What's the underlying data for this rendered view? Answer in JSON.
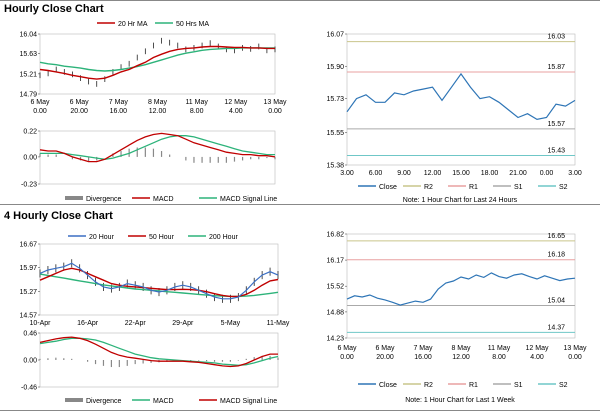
{
  "section1": {
    "title": "Hourly Close Chart"
  },
  "section2": {
    "title": "4 Hourly Close Chart"
  },
  "colors": {
    "close": "#2e75b6",
    "ma_red": "#c00000",
    "ma_green": "#2db37a",
    "r2": "#c9c58b",
    "r1": "#e8a0a0",
    "s1": "#aaaaaa",
    "s2": "#6fc7c7",
    "divergence": "#888888",
    "macd_red": "#c00000",
    "signal_green": "#2db37a",
    "ma_blue": "#3b6fc4"
  },
  "chart_data": [
    {
      "id": "hourly_price",
      "type": "line",
      "legend": [
        "20 Hr MA",
        "50 Hrs MA"
      ],
      "yticks": [
        "16.04",
        "15.63",
        "15.21",
        "14.79"
      ],
      "ylim": [
        14.79,
        16.04
      ],
      "xticks": [
        [
          "6 May",
          "0.00"
        ],
        [
          "6 May",
          "20.00"
        ],
        [
          "7 May",
          "16.00"
        ],
        [
          "8 May",
          "12.00"
        ],
        [
          "11 May",
          "8.00"
        ],
        [
          "12 May",
          "4.00"
        ],
        [
          "13 May",
          "0.00"
        ]
      ],
      "series": [
        {
          "values": [
            15.18,
            15.22,
            15.3,
            15.25,
            15.2,
            15.12,
            15.05,
            15.0,
            15.1,
            15.25,
            15.35,
            15.42,
            15.55,
            15.68,
            15.8,
            15.9,
            15.86,
            15.8,
            15.72,
            15.75,
            15.8,
            15.85,
            15.78,
            15.72,
            15.7,
            15.75,
            15.73,
            15.78,
            15.7,
            15.72
          ]
        },
        {
          "values": [
            15.3,
            15.28,
            15.25,
            15.22,
            15.18,
            15.15,
            15.12,
            15.1,
            15.12,
            15.18,
            15.25,
            15.3,
            15.38,
            15.45,
            15.55,
            15.62,
            15.68,
            15.72,
            15.74,
            15.75,
            15.77,
            15.78,
            15.78,
            15.77,
            15.76,
            15.76,
            15.75,
            15.75,
            15.74,
            15.74
          ]
        },
        {
          "values": [
            15.45,
            15.42,
            15.4,
            15.37,
            15.35,
            15.33,
            15.3,
            15.28,
            15.27,
            15.28,
            15.3,
            15.33,
            15.36,
            15.4,
            15.45,
            15.5,
            15.55,
            15.6,
            15.64,
            15.67,
            15.7,
            15.72,
            15.73,
            15.74,
            15.74,
            15.75,
            15.75,
            15.75,
            15.75,
            15.75
          ]
        }
      ]
    },
    {
      "id": "hourly_macd",
      "type": "line",
      "legend": [
        "Divergence",
        "MACD",
        "MACD Signal Line"
      ],
      "yticks": [
        "0.22",
        "0.00",
        "-0.23"
      ],
      "ylim": [
        -0.23,
        0.22
      ],
      "series": [
        {
          "values": [
            0.06,
            0.05,
            0.05,
            0.03,
            0.0,
            -0.02,
            -0.04,
            -0.04,
            -0.02,
            0.02,
            0.06,
            0.1,
            0.14,
            0.17,
            0.19,
            0.2,
            0.19,
            0.18,
            0.15,
            0.12,
            0.1,
            0.08,
            0.06,
            0.04,
            0.03,
            0.02,
            0.02,
            0.01,
            0.01,
            0.0
          ]
        },
        {
          "values": [
            0.03,
            0.03,
            0.03,
            0.03,
            0.02,
            0.01,
            0.0,
            -0.01,
            -0.02,
            -0.01,
            0.01,
            0.03,
            0.06,
            0.09,
            0.12,
            0.15,
            0.17,
            0.18,
            0.18,
            0.17,
            0.15,
            0.13,
            0.11,
            0.09,
            0.07,
            0.05,
            0.04,
            0.03,
            0.02,
            0.02
          ]
        }
      ]
    },
    {
      "id": "hourly_pivot",
      "type": "line",
      "yticks": [
        "16.07",
        "15.90",
        "15.73",
        "15.55",
        "15.38"
      ],
      "ylim": [
        15.38,
        16.07
      ],
      "xticks": [
        "3.00",
        "6.00",
        "9.00",
        "12.00",
        "15.00",
        "18.00",
        "21.00",
        "0.00",
        "3.00"
      ],
      "levels": [
        {
          "name": "R2",
          "value": 16.03,
          "label": "16.03"
        },
        {
          "name": "R1",
          "value": 15.87,
          "label": "15.87"
        },
        {
          "name": "S1",
          "value": 15.57,
          "label": "15.57"
        },
        {
          "name": "S2",
          "value": 15.43,
          "label": "15.43"
        }
      ],
      "series": [
        {
          "name": "Close",
          "values": [
            15.66,
            15.73,
            15.75,
            15.71,
            15.71,
            15.76,
            15.75,
            15.77,
            15.78,
            15.79,
            15.72,
            15.79,
            15.86,
            15.79,
            15.73,
            15.74,
            15.71,
            15.67,
            15.63,
            15.65,
            15.62,
            15.63,
            15.7,
            15.69,
            15.72
          ]
        }
      ],
      "legend": [
        "Close",
        "R2",
        "R1",
        "S1",
        "S2"
      ],
      "note": "Note: 1 Hour Chart for Last 24 Hours"
    },
    {
      "id": "four_hourly_price",
      "type": "line",
      "legend": [
        "20 Hour",
        "50 Hour",
        "200 Hour"
      ],
      "yticks": [
        "16.67",
        "15.97",
        "15.27",
        "14.57"
      ],
      "ylim": [
        14.57,
        16.67
      ],
      "xticks": [
        "10-Apr",
        "16-Apr",
        "22-Apr",
        "29-Apr",
        "5-May",
        "11-May"
      ],
      "series": [
        {
          "values": [
            15.8,
            15.9,
            15.95,
            16.0,
            16.1,
            15.95,
            15.75,
            15.55,
            15.4,
            15.35,
            15.4,
            15.5,
            15.45,
            15.4,
            15.3,
            15.25,
            15.3,
            15.4,
            15.45,
            15.4,
            15.3,
            15.2,
            15.1,
            15.05,
            15.05,
            15.1,
            15.3,
            15.55,
            15.75,
            15.85,
            15.75
          ]
        },
        {
          "values": [
            15.6,
            15.7,
            15.8,
            15.9,
            15.95,
            15.9,
            15.8,
            15.7,
            15.6,
            15.5,
            15.45,
            15.42,
            15.4,
            15.38,
            15.36,
            15.34,
            15.32,
            15.32,
            15.33,
            15.32,
            15.3,
            15.26,
            15.2,
            15.15,
            15.12,
            15.12,
            15.18,
            15.3,
            15.45,
            15.58,
            15.62
          ]
        },
        {
          "values": [
            15.78,
            15.74,
            15.7,
            15.66,
            15.62,
            15.58,
            15.54,
            15.5,
            15.46,
            15.43,
            15.4,
            15.37,
            15.34,
            15.32,
            15.3,
            15.28,
            15.26,
            15.24,
            15.22,
            15.2,
            15.18,
            15.16,
            15.14,
            15.13,
            15.12,
            15.12,
            15.13,
            15.15,
            15.18,
            15.21,
            15.24
          ]
        }
      ]
    },
    {
      "id": "four_hourly_macd",
      "type": "line",
      "legend": [
        "Divergence",
        "MACD",
        "MACD Signal Line"
      ],
      "yticks": [
        "0.46",
        "0.00",
        "-0.46"
      ],
      "ylim": [
        -0.46,
        0.46
      ],
      "series": [
        {
          "values": [
            0.3,
            0.33,
            0.36,
            0.38,
            0.39,
            0.37,
            0.33,
            0.27,
            0.2,
            0.13,
            0.08,
            0.05,
            0.03,
            0.01,
            -0.01,
            -0.02,
            -0.02,
            -0.02,
            -0.02,
            -0.03,
            -0.04,
            -0.06,
            -0.08,
            -0.1,
            -0.11,
            -0.1,
            -0.06,
            0.0,
            0.06,
            0.1,
            0.1
          ]
        },
        {
          "values": [
            0.28,
            0.3,
            0.32,
            0.35,
            0.37,
            0.37,
            0.36,
            0.34,
            0.3,
            0.25,
            0.2,
            0.15,
            0.1,
            0.07,
            0.04,
            0.02,
            0.01,
            0.0,
            -0.01,
            -0.02,
            -0.03,
            -0.04,
            -0.05,
            -0.07,
            -0.08,
            -0.09,
            -0.08,
            -0.05,
            -0.01,
            0.03,
            0.06
          ]
        }
      ]
    },
    {
      "id": "four_hourly_pivot",
      "type": "line",
      "yticks": [
        "16.82",
        "16.17",
        "15.52",
        "14.88",
        "14.23"
      ],
      "ylim": [
        14.23,
        16.82
      ],
      "xticks": [
        [
          "6 May",
          "0.00"
        ],
        [
          "6 May",
          "20.00"
        ],
        [
          "7 May",
          "16.00"
        ],
        [
          "8 May",
          "12.00"
        ],
        [
          "11 May",
          "8.00"
        ],
        [
          "12 May",
          "4.00"
        ],
        [
          "13 May",
          "0.00"
        ]
      ],
      "levels": [
        {
          "name": "R2",
          "value": 16.65,
          "label": "16.65"
        },
        {
          "name": "R1",
          "value": 16.18,
          "label": "16.18"
        },
        {
          "name": "S1",
          "value": 15.04,
          "label": "15.04"
        },
        {
          "name": "S2",
          "value": 14.37,
          "label": "14.37"
        }
      ],
      "series": [
        {
          "name": "Close",
          "values": [
            15.2,
            15.28,
            15.25,
            15.3,
            15.22,
            15.18,
            15.12,
            15.05,
            15.1,
            15.15,
            15.12,
            15.2,
            15.45,
            15.6,
            15.65,
            15.75,
            15.7,
            15.8,
            15.74,
            15.85,
            15.76,
            15.72,
            15.8,
            15.83,
            15.76,
            15.7,
            15.78,
            15.72,
            15.66,
            15.7,
            15.72
          ]
        }
      ],
      "legend": [
        "Close",
        "R2",
        "R1",
        "S1",
        "S2"
      ],
      "note": "Note: 1 Hour Chart for Last 1 Week"
    }
  ]
}
